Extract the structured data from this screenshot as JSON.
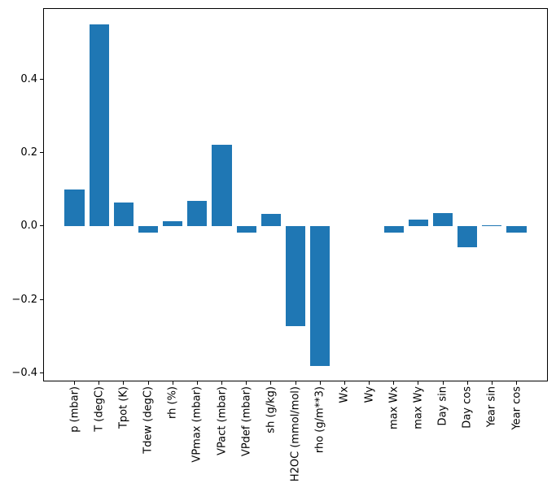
{
  "figure": {
    "kind": "matplotlib-bar-figure",
    "background": "#ffffff"
  },
  "colors": {
    "bar": "#1f77b4",
    "spine": "#000000",
    "text": "#000000",
    "background": "#ffffff"
  },
  "chart_data": {
    "type": "bar",
    "title": "",
    "xlabel": "",
    "ylabel": "",
    "grid": false,
    "legend": null,
    "categories": [
      "p (mbar)",
      "T (degC)",
      "Tpot (K)",
      "Tdew (degC)",
      "rh (%)",
      "VPmax (mbar)",
      "VPact (mbar)",
      "VPdef (mbar)",
      "sh (g/kg)",
      "H2OC (mmol/mol)",
      "rho (g/m**3)",
      "Wx",
      "Wy",
      "max Wx",
      "max Wy",
      "Day sin",
      "Day cos",
      "Year sin",
      "Year cos"
    ],
    "values": [
      0.1,
      0.548,
      0.064,
      -0.017,
      0.014,
      0.068,
      0.221,
      -0.018,
      0.033,
      -0.272,
      -0.38,
      0.0,
      0.0,
      -0.018,
      0.017,
      0.035,
      -0.058,
      0.003,
      -0.017
    ],
    "bar_color": "#1f77b4",
    "bar_width_ratio": 0.8,
    "ylim": [
      -0.4226,
      0.5926
    ],
    "yticks": [
      -0.4,
      -0.2,
      0.0,
      0.2,
      0.4
    ],
    "ytick_labels": [
      "−0.4",
      "−0.2",
      "0.0",
      "0.2",
      "0.4"
    ],
    "xtick_rotation_deg": 90
  }
}
